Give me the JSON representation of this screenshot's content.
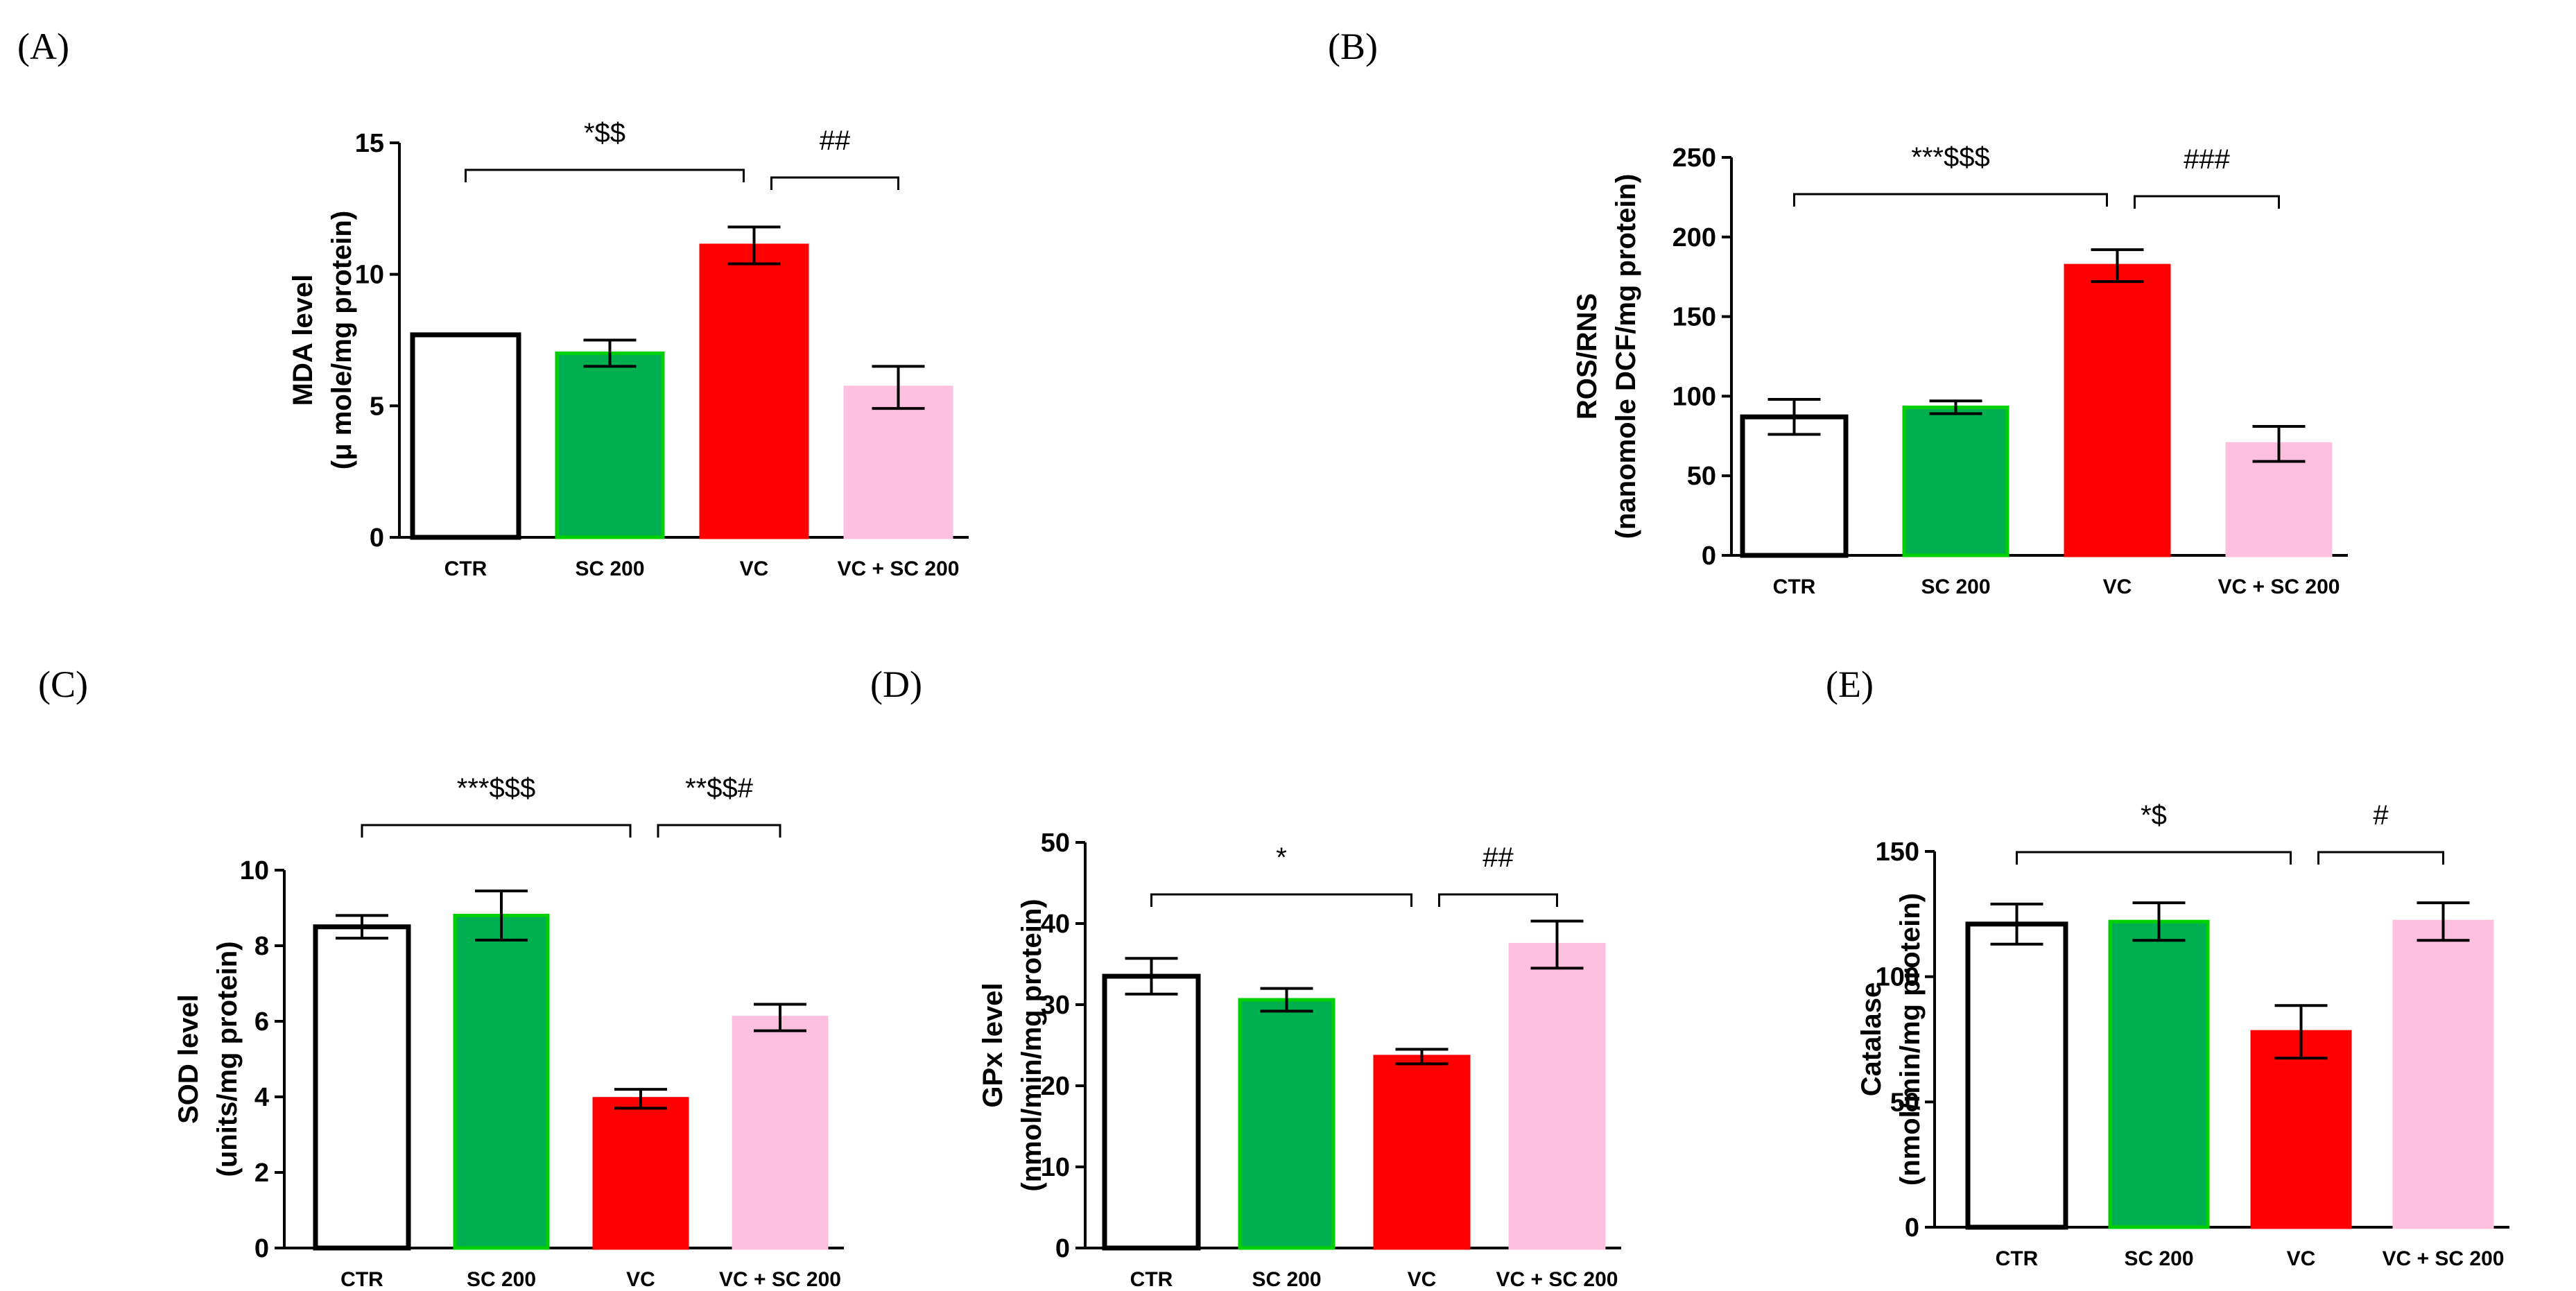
{
  "styles": {
    "bar_fills": [
      "#ffffff",
      "#00b050",
      "#ff0000",
      "#ffc0e0"
    ],
    "bar_strokes": [
      "#000000",
      "#00d000",
      "#ff0000",
      "#ffc0e0"
    ],
    "axis_color": "#000000"
  },
  "chart_data": [
    {
      "type": "bar",
      "panel": "(A)",
      "categories": [
        "CTR",
        "SC 200",
        "VC",
        "VC + SC 200"
      ],
      "values": [
        7.7,
        7.0,
        11.1,
        5.7
      ],
      "errors": [
        0.0,
        0.5,
        0.7,
        0.8
      ],
      "ylabel_lines": [
        "MDA level",
        "(μ mole/mg protein)"
      ],
      "ylim": [
        0,
        15
      ],
      "yticks": [
        0,
        5,
        10,
        15
      ],
      "brackets": [
        {
          "from": 0,
          "to": 2,
          "label": "*$$"
        },
        {
          "from": 2,
          "to": 3,
          "label": "##"
        }
      ]
    },
    {
      "type": "bar",
      "panel": "(B)",
      "categories": [
        "CTR",
        "SC 200",
        "VC",
        "VC + SC 200"
      ],
      "values": [
        87,
        93,
        182,
        70
      ],
      "errors": [
        11,
        4,
        10,
        11
      ],
      "ylabel_lines": [
        "ROS/RNS",
        "(nanomole DCF/mg protein)"
      ],
      "ylim": [
        0,
        250
      ],
      "yticks": [
        0,
        50,
        100,
        150,
        200,
        250
      ],
      "brackets": [
        {
          "from": 0,
          "to": 2,
          "label": "***$$$"
        },
        {
          "from": 2,
          "to": 3,
          "label": "###"
        }
      ]
    },
    {
      "type": "bar",
      "panel": "(C)",
      "categories": [
        "CTR",
        "SC 200",
        "VC",
        "VC + SC 200"
      ],
      "values": [
        8.5,
        8.8,
        3.95,
        6.1
      ],
      "errors": [
        0.3,
        0.65,
        0.25,
        0.35
      ],
      "ylabel_lines": [
        "SOD level",
        "(units/mg protein)"
      ],
      "ylim": [
        0,
        10
      ],
      "yticks": [
        0,
        2,
        4,
        6,
        8,
        10
      ],
      "brackets": [
        {
          "from": 0,
          "to": 2,
          "label": "***$$$"
        },
        {
          "from": 2,
          "to": 3,
          "label": "**$$#"
        }
      ]
    },
    {
      "type": "bar",
      "panel": "(D)",
      "categories": [
        "CTR",
        "SC 200",
        "VC",
        "VC + SC 200"
      ],
      "values": [
        33.5,
        30.6,
        23.6,
        37.4
      ],
      "errors": [
        2.2,
        1.4,
        0.9,
        2.9
      ],
      "ylabel_lines": [
        "GPx level",
        "(nmol/min/mg protein)"
      ],
      "ylim": [
        0,
        50
      ],
      "yticks": [
        0,
        10,
        20,
        30,
        40,
        50
      ],
      "brackets": [
        {
          "from": 0,
          "to": 2,
          "label": "*"
        },
        {
          "from": 2,
          "to": 3,
          "label": "##"
        }
      ]
    },
    {
      "type": "bar",
      "panel": "(E)",
      "categories": [
        "CTR",
        "SC 200",
        "VC",
        "VC + SC 200"
      ],
      "values": [
        121,
        122,
        78,
        122
      ],
      "errors": [
        8,
        7.5,
        10.5,
        7.5
      ],
      "ylabel_lines": [
        "Catalase",
        "(nmol/min/mg protein)"
      ],
      "ylim": [
        0,
        150
      ],
      "yticks": [
        0,
        50,
        100,
        150
      ],
      "brackets": [
        {
          "from": 0,
          "to": 2,
          "label": "*$"
        },
        {
          "from": 2,
          "to": 3,
          "label": "#"
        }
      ]
    }
  ]
}
